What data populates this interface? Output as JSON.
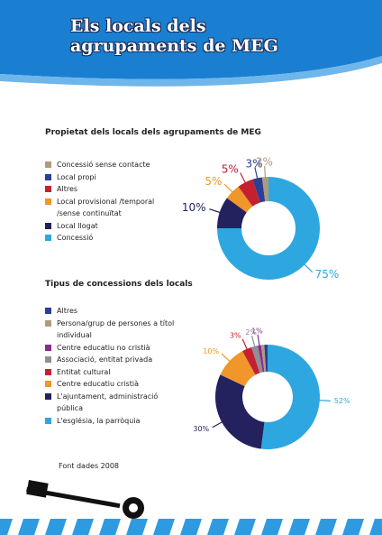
{
  "header": {
    "title_lines": [
      "Els locals dels",
      "agrupaments de MEG"
    ]
  },
  "chart_data": [
    {
      "type": "pie",
      "title": "Propietat dels locals dels agrupaments de MEG",
      "categories": [
        "Concessió sense contacte",
        "Local propi",
        "Altres",
        "Local provisional /temporal /sense continuïtat",
        "Local llogat",
        "Concessió"
      ],
      "values": [
        2,
        3,
        5,
        5,
        10,
        75
      ],
      "value_labels": [
        "2%",
        "3%",
        "5%",
        "5%",
        "10%",
        "75%"
      ],
      "colors": [
        "#b09a7a",
        "#2b3f94",
        "#c4202f",
        "#f0962a",
        "#23215e",
        "#2ea7e0"
      ]
    },
    {
      "type": "pie",
      "title": "Tipus de concessions dels locals",
      "categories": [
        "Altres",
        "Persona/grup de persones a títol individual",
        "Centre educatiu no cristià",
        "Associació, entitat privada",
        "Entitat cultural",
        "Centre educatiu cristià",
        "L'ajuntament, administració pública",
        "L'església, la parròquia"
      ],
      "values": [
        1,
        1,
        1,
        2,
        3,
        10,
        30,
        52
      ],
      "value_labels": [
        null,
        null,
        "1%",
        "2%",
        "3%",
        "10%",
        "30%",
        "52%"
      ],
      "colors": [
        "#2b3f94",
        "#b09a7a",
        "#8b2c8c",
        "#8f8f96",
        "#c4202f",
        "#f0962a",
        "#23215e",
        "#2ea7e0"
      ]
    }
  ],
  "footer": {
    "source": "Font dades 2008"
  }
}
